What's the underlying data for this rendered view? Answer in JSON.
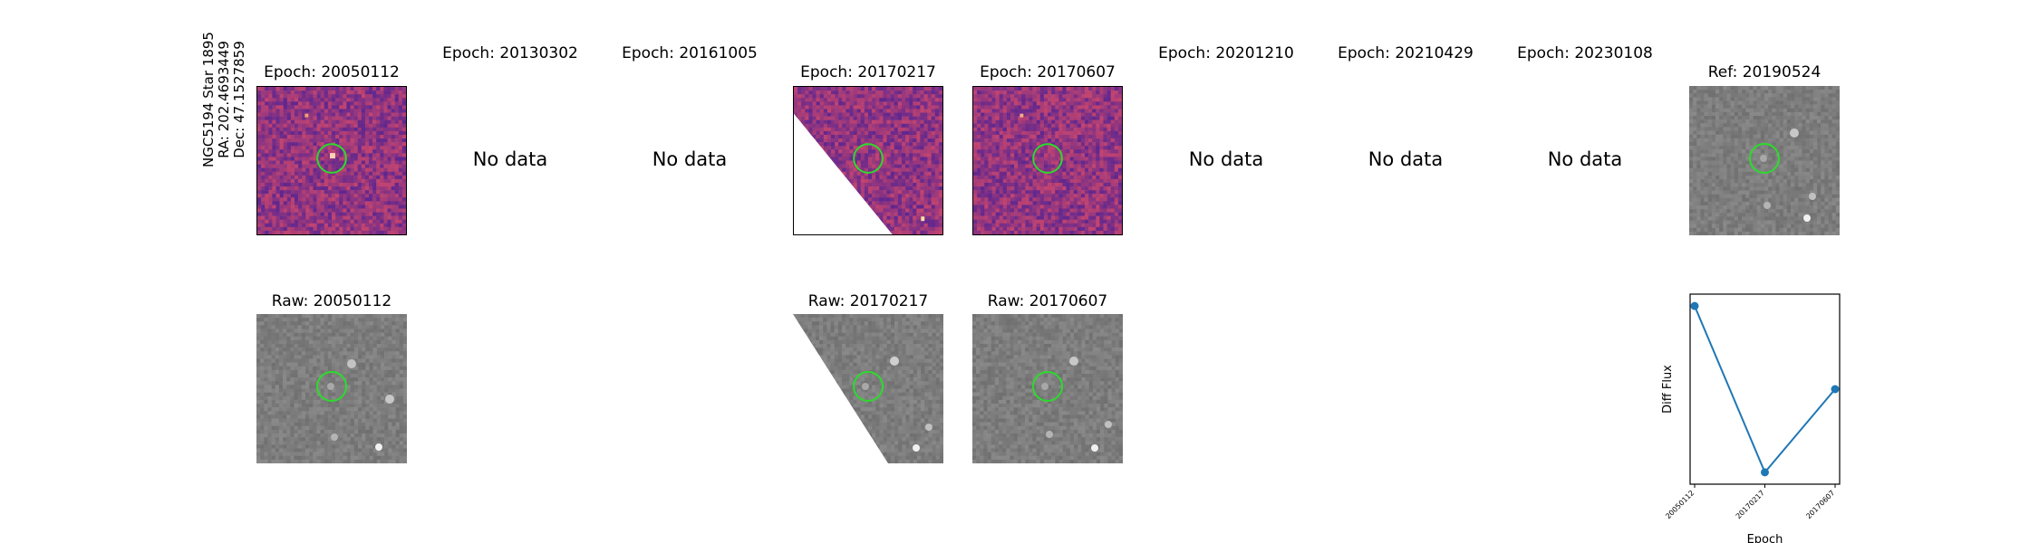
{
  "target": {
    "name": "NGC5194 Star 1895",
    "ra": "RA: 202.4693449",
    "dec": "Dec: 47.1527859"
  },
  "no_data_text": "No data",
  "epochs": [
    {
      "title": "Epoch: 20050112",
      "has_data": true
    },
    {
      "title": "Epoch: 20130302",
      "has_data": false
    },
    {
      "title": "Epoch: 20161005",
      "has_data": false
    },
    {
      "title": "Epoch: 20170217",
      "has_data": true
    },
    {
      "title": "Epoch: 20170607",
      "has_data": true
    },
    {
      "title": "Epoch: 20201210",
      "has_data": false
    },
    {
      "title": "Epoch: 20210429",
      "has_data": false
    },
    {
      "title": "Epoch: 20230108",
      "has_data": false
    }
  ],
  "reference": {
    "title": "Ref: 20190524"
  },
  "raw": [
    {
      "title": "Raw: 20050112"
    },
    {
      "title": "Raw: 20170217"
    },
    {
      "title": "Raw: 20170607"
    }
  ],
  "colors": {
    "diff_low": "#5a2590",
    "diff_high": "#c8466e",
    "raw_gray": "#7f7f7f",
    "circle": "#2bdc2b",
    "series": "#1f77b4"
  },
  "chart_data": {
    "type": "line",
    "categories": [
      "20050112",
      "20170217",
      "20170607"
    ],
    "values": [
      0.85,
      0.15,
      0.5
    ],
    "xlabel": "Epoch",
    "ylabel": "Diff Flux",
    "ylim": [
      0.1,
      0.9
    ],
    "grid": false,
    "markers": true
  }
}
